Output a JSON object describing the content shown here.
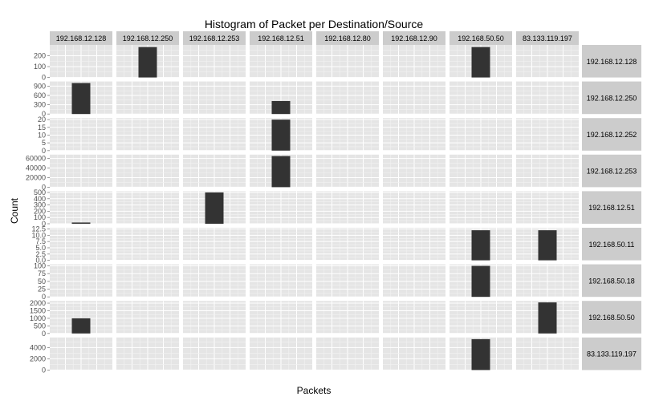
{
  "chart_data": {
    "type": "bar",
    "title": "Histogram of Packet per Destination/Source",
    "xlabel": "Packets",
    "ylabel": "Count",
    "grid": true,
    "facet": "grid",
    "columns": [
      "192.168.12.128",
      "192.168.12.250",
      "192.168.12.253",
      "192.168.12.51",
      "192.168.12.80",
      "192.168.12.90",
      "192.168.50.50",
      "83.133.119.197"
    ],
    "rows": [
      {
        "label": "192.168.12.128",
        "ylim": [
          0,
          300
        ],
        "ticks": [
          0,
          100,
          200
        ],
        "tick_labels": [
          "0",
          "100",
          "200"
        ],
        "bars": [
          {
            "col": 1,
            "value": 280
          },
          {
            "col": 6,
            "value": 280
          }
        ]
      },
      {
        "label": "192.168.12.250",
        "ylim": [
          0,
          1050
        ],
        "ticks": [
          0,
          300,
          600,
          900
        ],
        "tick_labels": [
          "0",
          "300",
          "600",
          "900"
        ],
        "bars": [
          {
            "col": 0,
            "value": 1000
          },
          {
            "col": 3,
            "value": 420
          }
        ]
      },
      {
        "label": "192.168.12.252",
        "ylim": [
          0,
          21
        ],
        "ticks": [
          0,
          5,
          10,
          15,
          20
        ],
        "tick_labels": [
          "0",
          "5",
          "10",
          "15",
          "20"
        ],
        "bars": [
          {
            "col": 3,
            "value": 20
          }
        ]
      },
      {
        "label": "192.168.12.253",
        "ylim": [
          0,
          68000
        ],
        "ticks": [
          0,
          20000,
          40000,
          60000
        ],
        "tick_labels": [
          "0",
          "20000",
          "40000",
          "60000"
        ],
        "bars": [
          {
            "col": 3,
            "value": 65000
          }
        ]
      },
      {
        "label": "192.168.12.51",
        "ylim": [
          0,
          520
        ],
        "ticks": [
          0,
          100,
          200,
          300,
          400,
          500
        ],
        "tick_labels": [
          "0",
          "100",
          "200",
          "300",
          "400",
          "500"
        ],
        "bars": [
          {
            "col": 0,
            "value": 20
          },
          {
            "col": 2,
            "value": 500
          }
        ]
      },
      {
        "label": "192.168.50.11",
        "ylim": [
          0,
          13
        ],
        "ticks": [
          0,
          2.5,
          5,
          7.5,
          10,
          12.5
        ],
        "tick_labels": [
          "0.0",
          "2.5",
          "5.0",
          "7.5",
          "10.0",
          "12.5"
        ],
        "bars": [
          {
            "col": 6,
            "value": 12
          },
          {
            "col": 7,
            "value": 12
          }
        ]
      },
      {
        "label": "192.168.50.18",
        "ylim": [
          0,
          105
        ],
        "ticks": [
          0,
          25,
          50,
          75,
          100
        ],
        "tick_labels": [
          "0",
          "25",
          "50",
          "75",
          "100"
        ],
        "bars": [
          {
            "col": 6,
            "value": 100
          }
        ]
      },
      {
        "label": "192.168.50.50",
        "ylim": [
          0,
          2150
        ],
        "ticks": [
          0,
          500,
          1000,
          1500,
          2000
        ],
        "tick_labels": [
          "0",
          "500",
          "1000",
          "1500",
          "2000"
        ],
        "bars": [
          {
            "col": 0,
            "value": 1000
          },
          {
            "col": 7,
            "value": 2050
          }
        ]
      },
      {
        "label": "83.133.119.197",
        "ylim": [
          0,
          5800
        ],
        "ticks": [
          0,
          2000,
          4000
        ],
        "tick_labels": [
          "0",
          "2000",
          "4000"
        ],
        "bars": [
          {
            "col": 6,
            "value": 5500
          }
        ]
      }
    ]
  },
  "colors": {
    "panel_background": "#e5e5e5",
    "strip_background": "#cccccc",
    "grid_major": "#ffffff",
    "grid_minor": "#f2f2f2",
    "bar_fill": "#333333",
    "text": "#000000",
    "tick_text": "#4d4d4d"
  }
}
